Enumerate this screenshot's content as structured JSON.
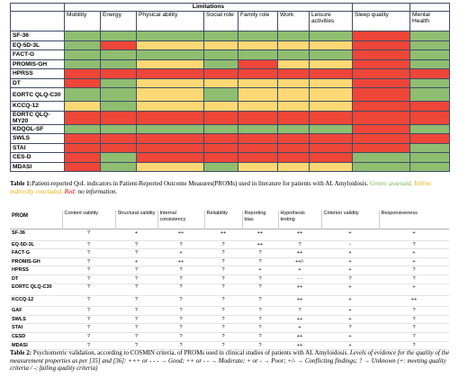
{
  "table1": {
    "group_header": "Limitations",
    "columns": [
      "Mobility",
      "Energy",
      "Physical ability",
      "Social role",
      "Family role",
      "Work",
      "Leisure activities",
      "Sleep quality",
      "Mental Health"
    ],
    "rows": [
      {
        "label": "SF-36",
        "cells": [
          "g",
          "g",
          "g",
          "g",
          "g",
          "g",
          "g",
          "r",
          "g"
        ]
      },
      {
        "label": "EQ-5D-3L",
        "cells": [
          "g",
          "r",
          "y",
          "y",
          "y",
          "y",
          "y",
          "r",
          "g"
        ]
      },
      {
        "label": "FACT-G",
        "cells": [
          "g",
          "g",
          "g",
          "g",
          "g",
          "g",
          "g",
          "r",
          "g"
        ]
      },
      {
        "label": "PROMIS-GH",
        "cells": [
          "g",
          "g",
          "y",
          "g",
          "r",
          "y",
          "y",
          "r",
          "g"
        ]
      },
      {
        "label": "HPRSS",
        "cells": [
          "r",
          "r",
          "r",
          "r",
          "r",
          "r",
          "r",
          "r",
          "r"
        ]
      },
      {
        "label": "DT",
        "cells": [
          "r",
          "g",
          "y",
          "y",
          "y",
          "y",
          "y",
          "r",
          "g"
        ]
      },
      {
        "label": "EORTC QLQ-C30",
        "cells": [
          "g",
          "g",
          "y",
          "g",
          "y",
          "y",
          "y",
          "r",
          "g"
        ]
      },
      {
        "label": "KCCQ-12",
        "cells": [
          "y",
          "g",
          "y",
          "y",
          "y",
          "y",
          "y",
          "r",
          "r"
        ]
      },
      {
        "label": "EORTC QLQ-MY20",
        "cells": [
          "r",
          "r",
          "r",
          "r",
          "r",
          "r",
          "r",
          "r",
          "r"
        ]
      },
      {
        "label": "KDQOL-SF",
        "cells": [
          "g",
          "g",
          "g",
          "g",
          "g",
          "g",
          "g",
          "r",
          "g"
        ]
      },
      {
        "label": "SWLS",
        "cells": [
          "r",
          "r",
          "r",
          "r",
          "r",
          "r",
          "r",
          "r",
          "r"
        ]
      },
      {
        "label": "STAI",
        "cells": [
          "r",
          "r",
          "r",
          "r",
          "r",
          "r",
          "r",
          "r",
          "g"
        ]
      },
      {
        "label": "CES-D",
        "cells": [
          "r",
          "g",
          "r",
          "r",
          "r",
          "r",
          "r",
          "g",
          "g"
        ]
      },
      {
        "label": "MDASI",
        "cells": [
          "r",
          "g",
          "y",
          "g",
          "y",
          "y",
          "y",
          "g",
          "g"
        ]
      }
    ]
  },
  "caption1": {
    "lead": "Table 1:",
    "text": "Patient-reported QoL indicators in Patient-Reported Outcome Measures(PROMs) used in literature for patients with AL Amyloidosis.",
    "green": "Green: assessed,",
    "yellow": "Yellow: indirectly concluded,",
    "red": "Red:",
    "red_rest": "no information."
  },
  "table2": {
    "columns": [
      "PROM",
      "Content validity",
      "Structural validity",
      "Internal consistency",
      "Reliability",
      "Reporting bias",
      "Hypothesis testing",
      "Criterion validity",
      "Responsiveness"
    ],
    "rows": [
      {
        "label": "SF-36",
        "cells": [
          "?",
          "+",
          "++",
          "++",
          "++",
          "++",
          "+",
          "+"
        ]
      },
      {
        "label": "EQ-5D-3L",
        "cells": [
          "?",
          "?",
          "?",
          "?",
          "++",
          "?",
          "-",
          "?"
        ]
      },
      {
        "label": "FACT-G",
        "cells": [
          "?",
          "?",
          "+",
          "?",
          "?",
          "++",
          "+",
          "+"
        ]
      },
      {
        "label": "PROMIS-GH",
        "cells": [
          "?",
          "+",
          "++",
          "?",
          "?",
          "++/-",
          "+",
          "+"
        ]
      },
      {
        "label": "HPRSS",
        "cells": [
          "?",
          "?",
          "?",
          "?",
          "+",
          "+",
          "+",
          "?"
        ]
      },
      {
        "label": "DT",
        "cells": [
          "?",
          "?",
          "?",
          "?",
          "?",
          "- -",
          "?",
          "?"
        ]
      },
      {
        "label": "EORTC QLQ-C30",
        "cells": [
          "?",
          "?",
          "?",
          "?",
          "?",
          "++",
          "+",
          "+"
        ]
      },
      {
        "label": "KCCQ-12",
        "cells": [
          "?",
          "?",
          "?",
          "?",
          "?",
          "++",
          "+",
          "++"
        ]
      },
      {
        "label": "GAF",
        "cells": [
          "?",
          "?",
          "?",
          "?",
          "?",
          "?",
          "+",
          "?"
        ]
      },
      {
        "label": "SWLS",
        "cells": [
          "?",
          "?",
          "?",
          "?",
          "?",
          "++",
          "+",
          "?"
        ]
      },
      {
        "label": "STAI",
        "cells": [
          "?",
          "?",
          "?",
          "?",
          "?",
          "+",
          "?",
          "?"
        ]
      },
      {
        "label": "CESD",
        "cells": [
          "?",
          "?",
          "?",
          "?",
          "?",
          "++",
          "+",
          "?"
        ]
      },
      {
        "label": "MDASI",
        "cells": [
          "?",
          "?",
          "?",
          "?",
          "?",
          "++",
          "+",
          "?"
        ]
      }
    ]
  },
  "caption2": {
    "lead": "Table 2:",
    "text": "Psychometric validation, according to COSMIN criteria, of PROMs used in clinical studies of patients with AL Amyloidosis.",
    "italic": "Levels of evidence for the quality of the measurement properties as per [35] and [36]: +++ or - - - → Good; ++ or - - → Moderate; + or - → Poor; +/- → Conflicting findings; ? → Unknown (+: meeting quality criteria / -: failing quality criteria)"
  }
}
